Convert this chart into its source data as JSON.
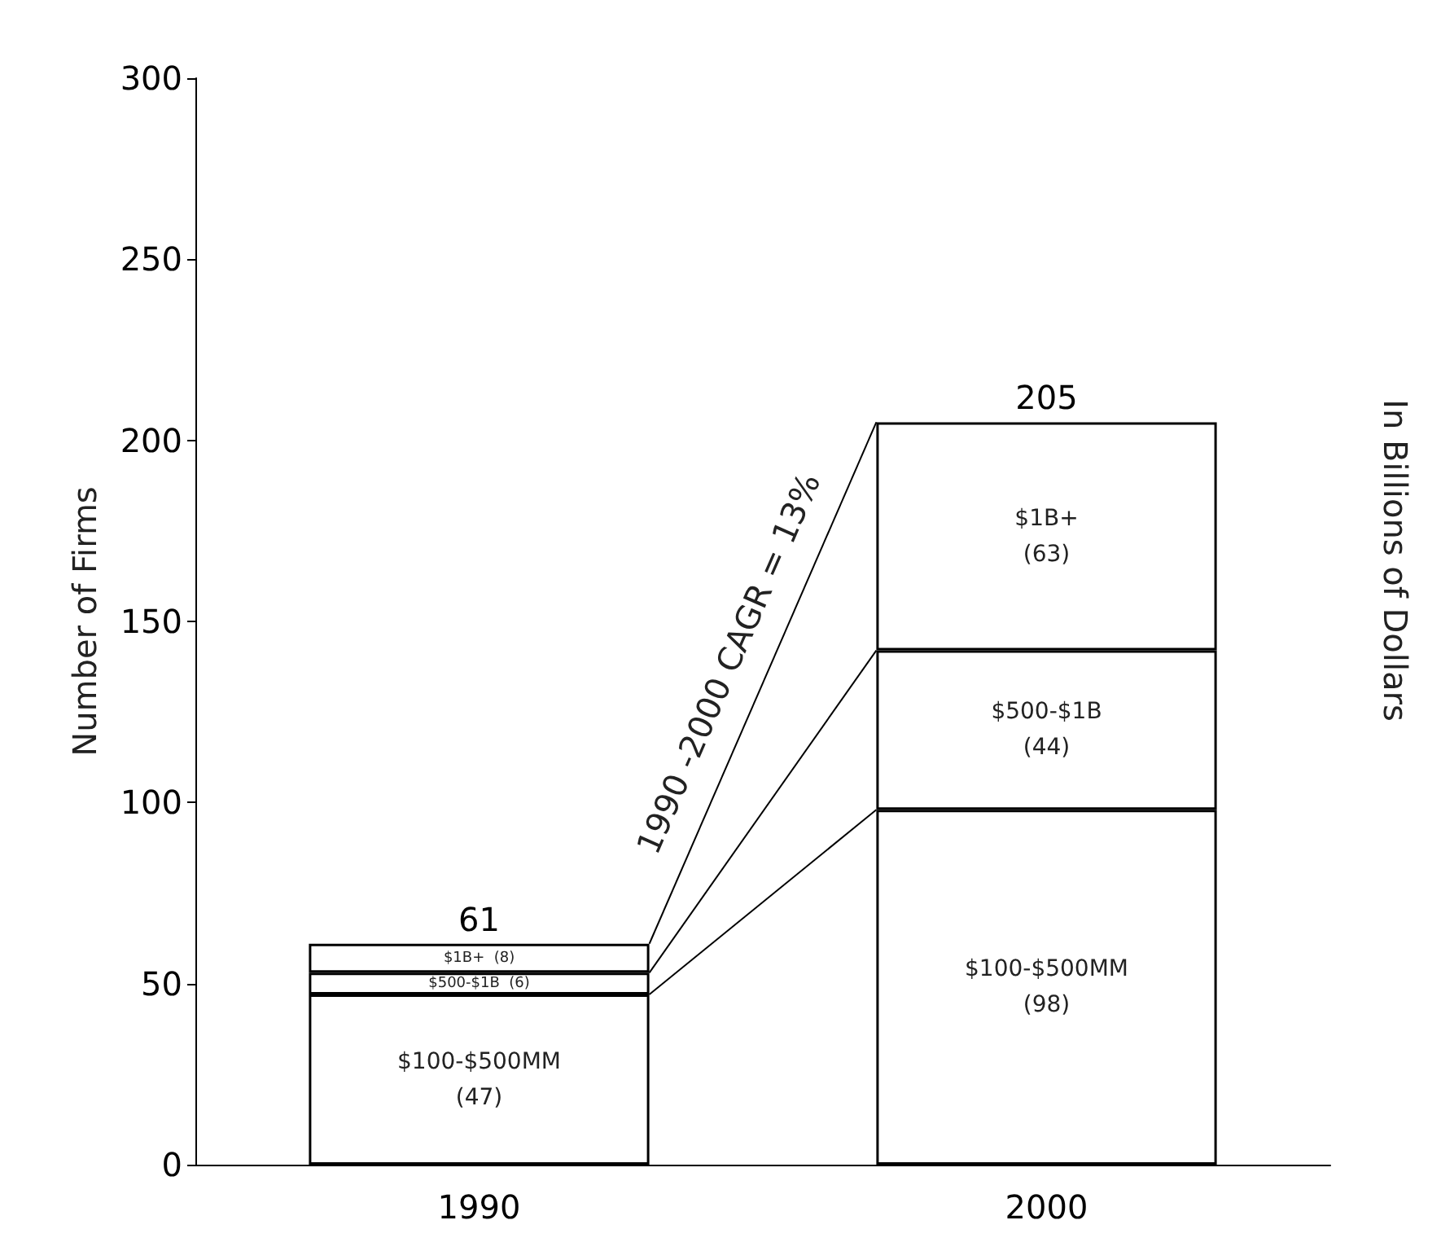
{
  "chart_data": {
    "type": "bar",
    "stacked": true,
    "categories": [
      "1990",
      "2000"
    ],
    "series": [
      {
        "name": "$100-$500MM",
        "color": "#ffffff",
        "values": [
          47,
          98
        ],
        "value_labels": [
          "(47)",
          "(98)"
        ]
      },
      {
        "name": "$500-$1B",
        "color": "#ffffff",
        "values": [
          6,
          44
        ],
        "value_labels": [
          "(6)",
          "(44)"
        ]
      },
      {
        "name": "$1B+",
        "color": "#ffffff",
        "values": [
          8,
          63
        ],
        "value_labels": [
          "(8)",
          "(63)"
        ]
      }
    ],
    "totals": [
      "61",
      "205"
    ],
    "ylabel": "Number of Firms",
    "y2label": "In Billions of Dollars",
    "annotations": [
      "1990 -2000 CAGR = 13%"
    ],
    "ylim": [
      0,
      300
    ],
    "yticks": [
      0,
      50,
      100,
      150,
      200,
      250,
      300
    ],
    "grid": false,
    "legend": false
  }
}
